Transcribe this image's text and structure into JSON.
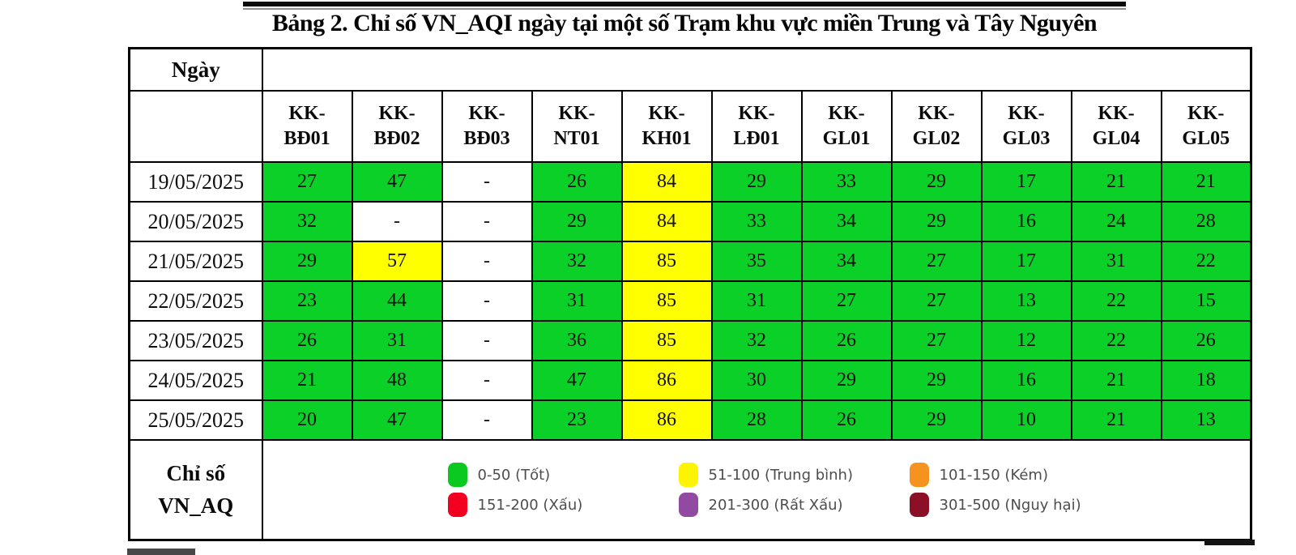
{
  "title": "Bảng 2. Chỉ số VN_AQI ngày tại một số Trạm khu vực miền Trung và Tây Nguyên",
  "table": {
    "date_header": "Ngày",
    "stations": [
      "KK-BĐ01",
      "KK-BĐ02",
      "KK-BĐ03",
      "KK-NT01",
      "KK-KH01",
      "KK-LĐ01",
      "KK-GL01",
      "KK-GL02",
      "KK-GL03",
      "KK-GL04",
      "KK-GL05"
    ],
    "rows": [
      {
        "date": "19/05/2025",
        "values": [
          "27",
          "47",
          "-",
          "26",
          "84",
          "29",
          "33",
          "29",
          "17",
          "21",
          "21"
        ]
      },
      {
        "date": "20/05/2025",
        "values": [
          "32",
          "-",
          "-",
          "29",
          "84",
          "33",
          "34",
          "29",
          "16",
          "24",
          "28"
        ]
      },
      {
        "date": "21/05/2025",
        "values": [
          "29",
          "57",
          "-",
          "32",
          "85",
          "35",
          "34",
          "27",
          "17",
          "31",
          "22"
        ]
      },
      {
        "date": "22/05/2025",
        "values": [
          "23",
          "44",
          "-",
          "31",
          "85",
          "31",
          "27",
          "27",
          "13",
          "22",
          "15"
        ]
      },
      {
        "date": "23/05/2025",
        "values": [
          "26",
          "31",
          "-",
          "36",
          "85",
          "32",
          "26",
          "27",
          "12",
          "22",
          "26"
        ]
      },
      {
        "date": "24/05/2025",
        "values": [
          "21",
          "48",
          "-",
          "47",
          "86",
          "30",
          "29",
          "29",
          "16",
          "21",
          "18"
        ]
      },
      {
        "date": "25/05/2025",
        "values": [
          "20",
          "47",
          "-",
          "23",
          "86",
          "28",
          "26",
          "29",
          "10",
          "21",
          "13"
        ]
      }
    ]
  },
  "legend": {
    "label_line1": "Chỉ số",
    "label_line2": "VN_AQ",
    "items": [
      {
        "range": "0-50 (Tốt)",
        "color": "#0cc922"
      },
      {
        "range": "51-100 (Trung bình)",
        "color": "#fdf403"
      },
      {
        "range": "101-150 (Kém)",
        "color": "#f6921e"
      },
      {
        "range": "151-200 (Xấu)",
        "color": "#f30020"
      },
      {
        "range": "201-300 (Rất Xấu)",
        "color": "#9149a1"
      },
      {
        "range": "301-500 (Nguy hại)",
        "color": "#8c1025"
      }
    ]
  },
  "colors": {
    "good": "#0bd028",
    "moderate": "#ffff00",
    "poor": "#f6921e",
    "bad": "#f30020",
    "very_bad": "#9149a1",
    "hazardous": "#8c1025",
    "no_data": "#ffffff"
  }
}
